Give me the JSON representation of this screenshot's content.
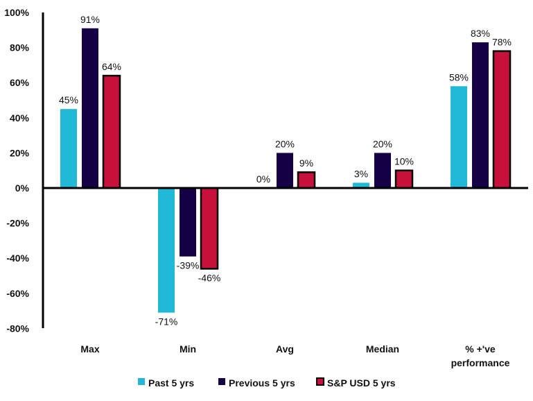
{
  "chart_data": {
    "type": "bar",
    "title": "",
    "xlabel": "",
    "ylabel": "",
    "ylim": [
      -80,
      100
    ],
    "yticks": [
      "100%",
      "80%",
      "60%",
      "40%",
      "20%",
      "0%",
      "-20%",
      "-40%",
      "-60%",
      "-80%"
    ],
    "ytick_values": [
      100,
      80,
      60,
      40,
      20,
      0,
      -20,
      -40,
      -60,
      -80
    ],
    "grid": false,
    "legend_position": "bottom",
    "categories": [
      "Max",
      "Min",
      "Avg",
      "Median",
      "% +'ve performance"
    ],
    "category_lines": [
      [
        "Max"
      ],
      [
        "Min"
      ],
      [
        "Avg"
      ],
      [
        "Median"
      ],
      [
        "% +'ve",
        "performance"
      ]
    ],
    "series": [
      {
        "name": "Past 5 yrs",
        "color": "#22B8D8",
        "values": [
          45,
          -71,
          0,
          3,
          58
        ],
        "labels": [
          "45%",
          "-71%",
          "0%",
          "3%",
          "58%"
        ]
      },
      {
        "name": "Previous 5 yrs",
        "color": "#150045",
        "values": [
          91,
          -39,
          20,
          20,
          83
        ],
        "labels": [
          "91%",
          "-39%",
          "20%",
          "20%",
          "83%"
        ]
      },
      {
        "name": "S&P USD 5 yrs",
        "color": "#C8103C",
        "border": "#000000",
        "values": [
          64,
          -46,
          9,
          10,
          78
        ],
        "labels": [
          "64%",
          "-46%",
          "9%",
          "10%",
          "78%"
        ]
      }
    ]
  }
}
